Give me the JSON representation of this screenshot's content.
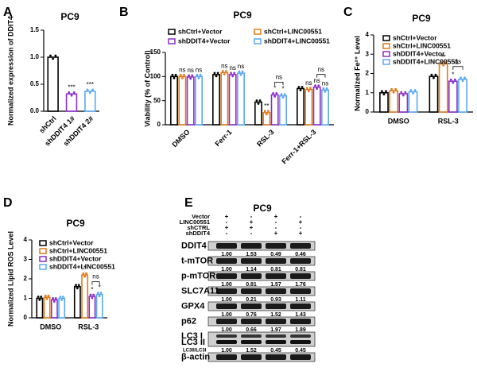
{
  "chart_data": [
    {
      "type": "bar",
      "panel_label": "A",
      "title": "PC9",
      "ylabel": "Normalized expression of DDIT4",
      "categories": [
        "shCtrl",
        "shDDIT4 1#",
        "shDDIT4 2#"
      ],
      "values": [
        1.0,
        0.32,
        0.37
      ],
      "colors": [
        "#000000",
        "#8b2fc9",
        "#5aa9f0"
      ],
      "significance": [
        null,
        "***",
        "***"
      ],
      "ylim": [
        0,
        1.5
      ],
      "yticks": [
        {
          "value": 0,
          "label": "0.0"
        },
        0.5,
        {
          "value": 1,
          "label": "1.0"
        },
        1.5
      ]
    },
    {
      "type": "bar",
      "panel_label": "B",
      "title": "PC9",
      "ylabel": "Viability (% of Control)",
      "categories": [
        "DMSO",
        "Ferr-1",
        "RSL-3",
        "Ferr-1+RSL-3"
      ],
      "series": [
        {
          "name": "shCtrl+Vector",
          "color": "#000000",
          "values": [
            100,
            104,
            47,
            75
          ]
        },
        {
          "name": "shCtrl+LINC00551",
          "color": "#e07b1a",
          "values": [
            100,
            108,
            25,
            73
          ],
          "significance": [
            "ns",
            "ns",
            "**",
            "ns"
          ]
        },
        {
          "name": "shDDIT4+Vector",
          "color": "#8b2fc9",
          "values": [
            99,
            104,
            62,
            78
          ],
          "significance": [
            "ns",
            "ns",
            "*",
            "ns"
          ]
        },
        {
          "name": "shDDIT4+LINC00551",
          "color": "#5aa9f0",
          "values": [
            100,
            107,
            60,
            72
          ],
          "significance": [
            "ns",
            "ns",
            "*",
            "ns"
          ]
        }
      ],
      "bracket_labels": [
        null,
        null,
        "ns",
        "ns"
      ],
      "ylim": [
        0,
        150
      ],
      "yticks": [
        0,
        50,
        100,
        150
      ]
    },
    {
      "type": "bar",
      "panel_label": "C",
      "title": "PC9",
      "ylabel": "Normalized Fe²⁺ Level",
      "categories": [
        "DMSO",
        "RSL-3"
      ],
      "series": [
        {
          "name": "shCtrl+Vector",
          "color": "#000000",
          "values": [
            1.0,
            1.85
          ]
        },
        {
          "name": "shCtrl+LINC00551",
          "color": "#e07b1a",
          "values": [
            1.1,
            2.5
          ],
          "significance": [
            null,
            "**"
          ]
        },
        {
          "name": "shDDIT4+Vector",
          "color": "#8b2fc9",
          "values": [
            0.95,
            1.6
          ],
          "significance": [
            null,
            "*"
          ]
        },
        {
          "name": "shDDIT4+LINC00551",
          "color": "#5aa9f0",
          "values": [
            1.05,
            1.7
          ]
        }
      ],
      "bracket_labels": [
        null,
        "ns"
      ],
      "ylim": [
        0,
        4
      ],
      "yticks": [
        0,
        1,
        2,
        3,
        4
      ]
    },
    {
      "type": "bar",
      "panel_label": "D",
      "title": "PC9",
      "ylabel": "Normalized Lipid ROS Level",
      "categories": [
        "DMSO",
        "RSL-3"
      ],
      "series": [
        {
          "name": "shCtrl+Vector",
          "color": "#000000",
          "values": [
            1.0,
            1.6
          ]
        },
        {
          "name": "shCtrl+LINC00551",
          "color": "#e07b1a",
          "values": [
            1.05,
            2.2
          ],
          "significance": [
            null,
            "*"
          ]
        },
        {
          "name": "shDDIT4+Vector",
          "color": "#8b2fc9",
          "values": [
            0.92,
            1.1
          ],
          "significance": [
            null,
            "*"
          ]
        },
        {
          "name": "shDDIT4+LINC00551",
          "color": "#5aa9f0",
          "values": [
            1.0,
            1.2
          ],
          "significance": [
            null,
            "*"
          ]
        }
      ],
      "bracket_labels": [
        null,
        "ns"
      ],
      "ylim": [
        0,
        4
      ],
      "yticks": [
        0,
        1,
        2,
        3,
        4
      ]
    }
  ],
  "blot": {
    "panel_label": "E",
    "title": "PC9",
    "conditions": [
      {
        "name": "Vector",
        "signs": [
          "+",
          "-",
          "+",
          "-"
        ]
      },
      {
        "name": "LINC00551",
        "signs": [
          "-",
          "+",
          "-",
          "+"
        ]
      },
      {
        "name": "shCTRL",
        "signs": [
          "+",
          "+",
          "-",
          "-"
        ]
      },
      {
        "name": "shDDIT4",
        "signs": [
          "-",
          "-",
          "+",
          "+"
        ]
      }
    ],
    "rows": [
      {
        "label": "DDIT4",
        "values": [
          "1.00",
          "1.53",
          "0.49",
          "0.46"
        ]
      },
      {
        "label": "t-mTOR",
        "values": [
          "1.00",
          "1.14",
          "0.81",
          "0.81"
        ]
      },
      {
        "label": "p-mTOR",
        "values": [
          "1.00",
          "0.81",
          "1.57",
          "1.76"
        ]
      },
      {
        "label": "SLC7A11",
        "values": [
          "1.00",
          "0.21",
          "0.93",
          "1.11"
        ]
      },
      {
        "label": "GPX4",
        "values": [
          "1.00",
          "0.76",
          "1.52",
          "1.43"
        ]
      },
      {
        "label": "p62",
        "values": [
          "1.00",
          "0.66",
          "1.97",
          "1.89"
        ]
      },
      {
        "labels": [
          "LC3 I",
          "LC3 II"
        ],
        "ratio_label": "LC3II/LC3I",
        "values": [
          "1.00",
          "1.52",
          "0.45",
          "0.45"
        ]
      },
      {
        "label": "β-actin"
      }
    ]
  }
}
